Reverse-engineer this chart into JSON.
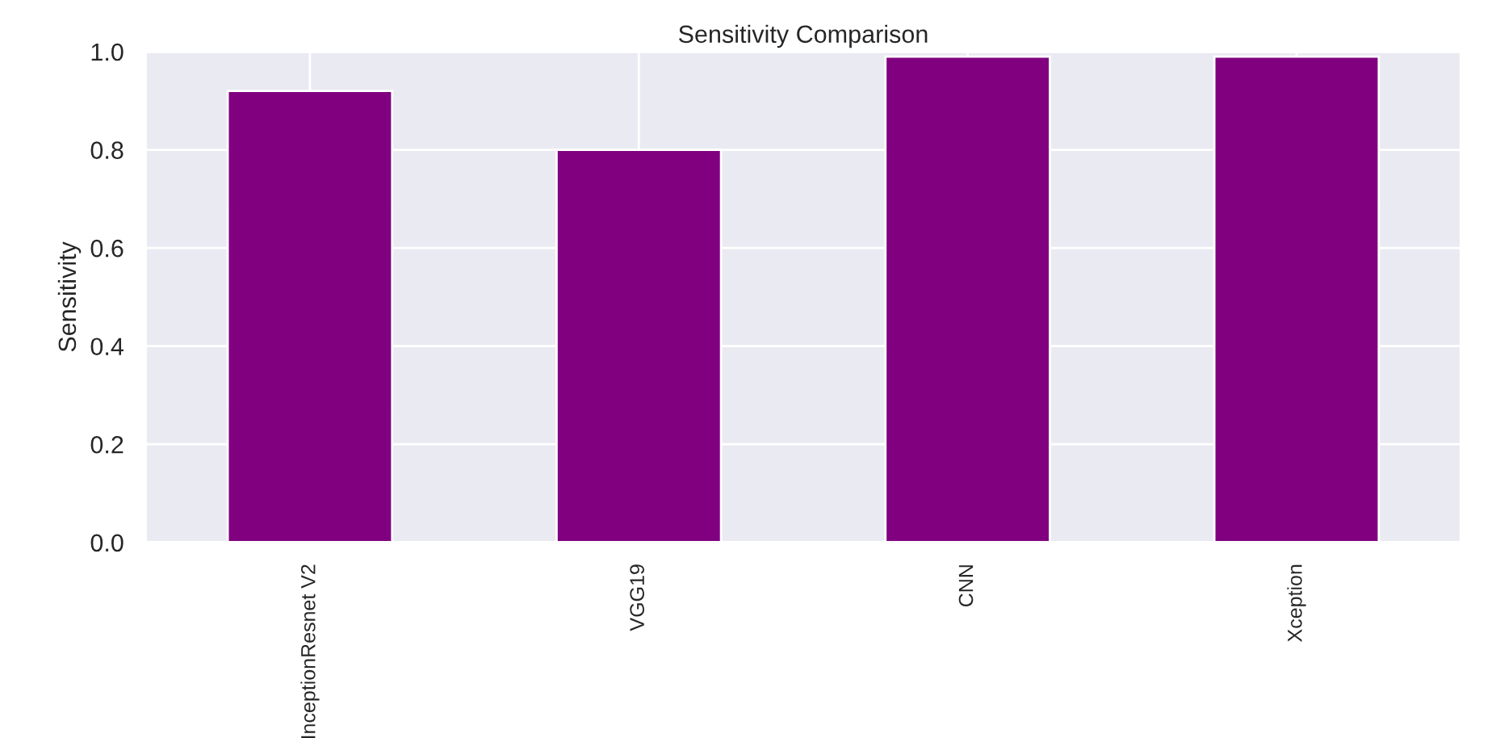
{
  "chart_data": {
    "type": "bar",
    "title": "Sensitivity Comparison",
    "ylabel": "Sensitivity",
    "categories": [
      "InceptionResnet V2",
      "VGG19",
      "CNN",
      "Xception"
    ],
    "values": [
      0.92,
      0.8,
      0.99,
      0.99
    ],
    "color": "#800080",
    "ylim": [
      0,
      1.0
    ],
    "yticks": [
      {
        "value": 0,
        "label": "0.0"
      },
      0.2,
      0.4,
      0.6,
      0.8,
      {
        "value": 1,
        "label": "1.0"
      }
    ],
    "grid": true,
    "legend": false
  }
}
